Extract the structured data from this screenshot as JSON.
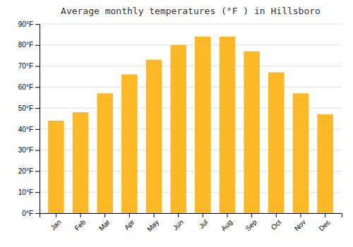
{
  "chart_data": {
    "type": "bar",
    "title": "Average monthly temperatures (°F ) in Hillsboro",
    "categories": [
      "Jan",
      "Feb",
      "Mar",
      "Apr",
      "May",
      "Jun",
      "Jul",
      "Aug",
      "Sep",
      "Oct",
      "Nov",
      "Dec"
    ],
    "values": [
      44,
      48,
      57,
      66,
      73,
      80,
      84,
      84,
      77,
      67,
      57,
      47
    ],
    "color": "#FDB827",
    "ylim": [
      0,
      90
    ],
    "yticks": [
      {
        "value": 0,
        "label": "0°F"
      },
      {
        "value": 10,
        "label": "10°F"
      },
      {
        "value": 20,
        "label": "20°F"
      },
      {
        "value": 30,
        "label": "30°F"
      },
      {
        "value": 40,
        "label": "40°F"
      },
      {
        "value": 50,
        "label": "50°F"
      },
      {
        "value": 60,
        "label": "60°F"
      },
      {
        "value": 70,
        "label": "70°F"
      },
      {
        "value": 80,
        "label": "80°F"
      },
      {
        "value": 90,
        "label": "90°F"
      }
    ],
    "grid": true
  }
}
